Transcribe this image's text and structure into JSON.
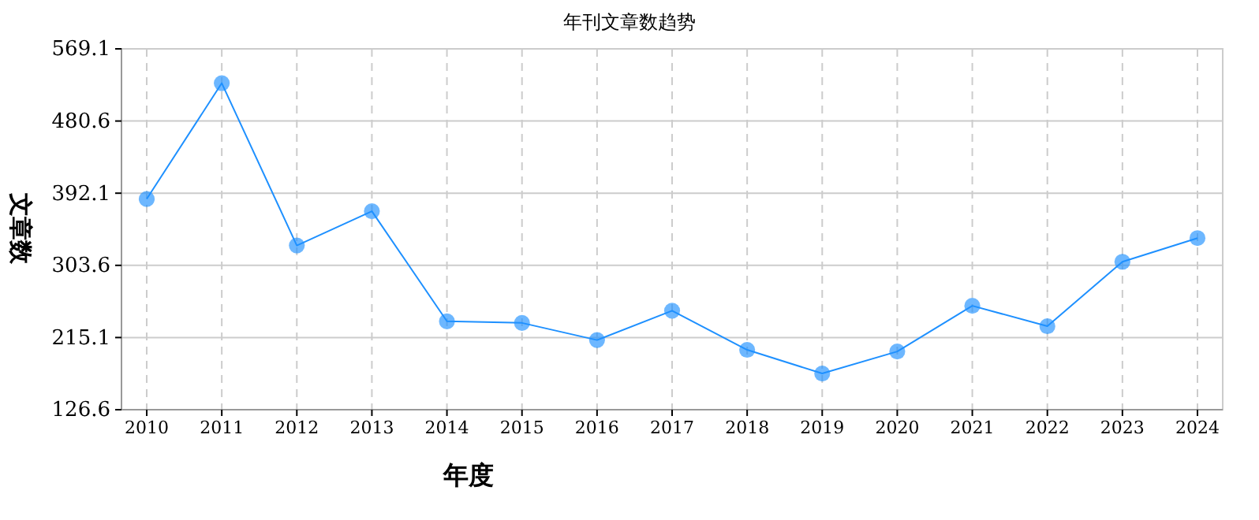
{
  "chart_data": {
    "type": "line",
    "title": "年刊文章数趋势",
    "xlabel": "年度",
    "ylabel": "文章数",
    "categories": [
      "2010",
      "2011",
      "2012",
      "2013",
      "2014",
      "2015",
      "2016",
      "2017",
      "2018",
      "2019",
      "2020",
      "2021",
      "2022",
      "2023",
      "2024"
    ],
    "series": [
      {
        "color": "#1e90ff",
        "values": [
          385,
          527,
          328,
          370,
          235,
          233,
          212,
          248,
          200,
          171,
          198,
          254,
          229,
          308,
          337
        ]
      }
    ],
    "ylim": [
      126.6,
      569.1
    ],
    "yticks": [
      126.6,
      215.1,
      303.6,
      392.1,
      480.6,
      569.1
    ],
    "grid": true,
    "marker": "circle",
    "line_style": "solid"
  }
}
